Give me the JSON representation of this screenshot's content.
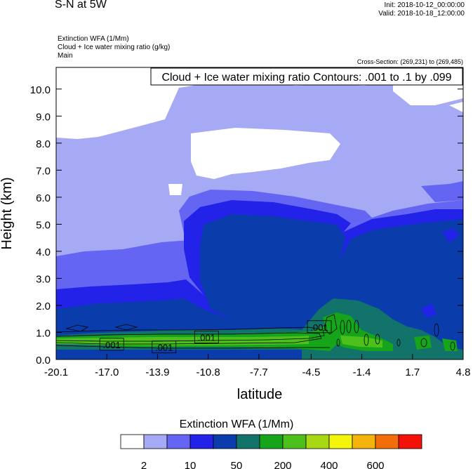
{
  "header": {
    "title": "S-N at 5W",
    "init": "Init: 2018-10-12_00:00:00",
    "valid": "Valid: 2018-10-18_12:00:00",
    "fields": [
      "Extinction WFA   (1/Mm)",
      "Cloud + Ice water mixing ratio   (g/kg)",
      "Main"
    ],
    "cross_section": "Cross-Section: (269,231) to (269,485)"
  },
  "colorbar": {
    "title": "Extinction WFA  (1/Mm)",
    "colors": [
      "#ffffff",
      "#a6aaf5",
      "#6466f3",
      "#2222e8",
      "#0a3dab",
      "#12736a",
      "#16a41a",
      "#4ec01b",
      "#a8d813",
      "#f5f50b",
      "#f5b40b",
      "#f26e0a",
      "#f2120a"
    ],
    "labels": [
      "2",
      "10",
      "50",
      "200",
      "400",
      "600"
    ]
  },
  "chart_data": {
    "type": "contour",
    "title": "Cloud + Ice water mixing ratio Contours: .001 to .1 by .099",
    "xlabel": "latitude",
    "ylabel": "Height (km)",
    "xlim": [
      -20.1,
      4.8
    ],
    "ylim": [
      0,
      10.8
    ],
    "xticks": [
      "-20.1",
      "-17.0",
      "-13.9",
      "-10.8",
      "-7.7",
      "-4.5",
      "-1.4",
      "1.7",
      "4.8"
    ],
    "yticks": [
      "0.0",
      "1.0",
      "2.0",
      "3.0",
      "4.0",
      "5.0",
      "6.0",
      "7.0",
      "8.0",
      "9.0",
      "10.0"
    ],
    "contour_levels": [
      0.001,
      0.1
    ],
    "contour_labels": [
      ".001",
      ".001",
      ".001",
      ".001",
      ".001"
    ]
  }
}
